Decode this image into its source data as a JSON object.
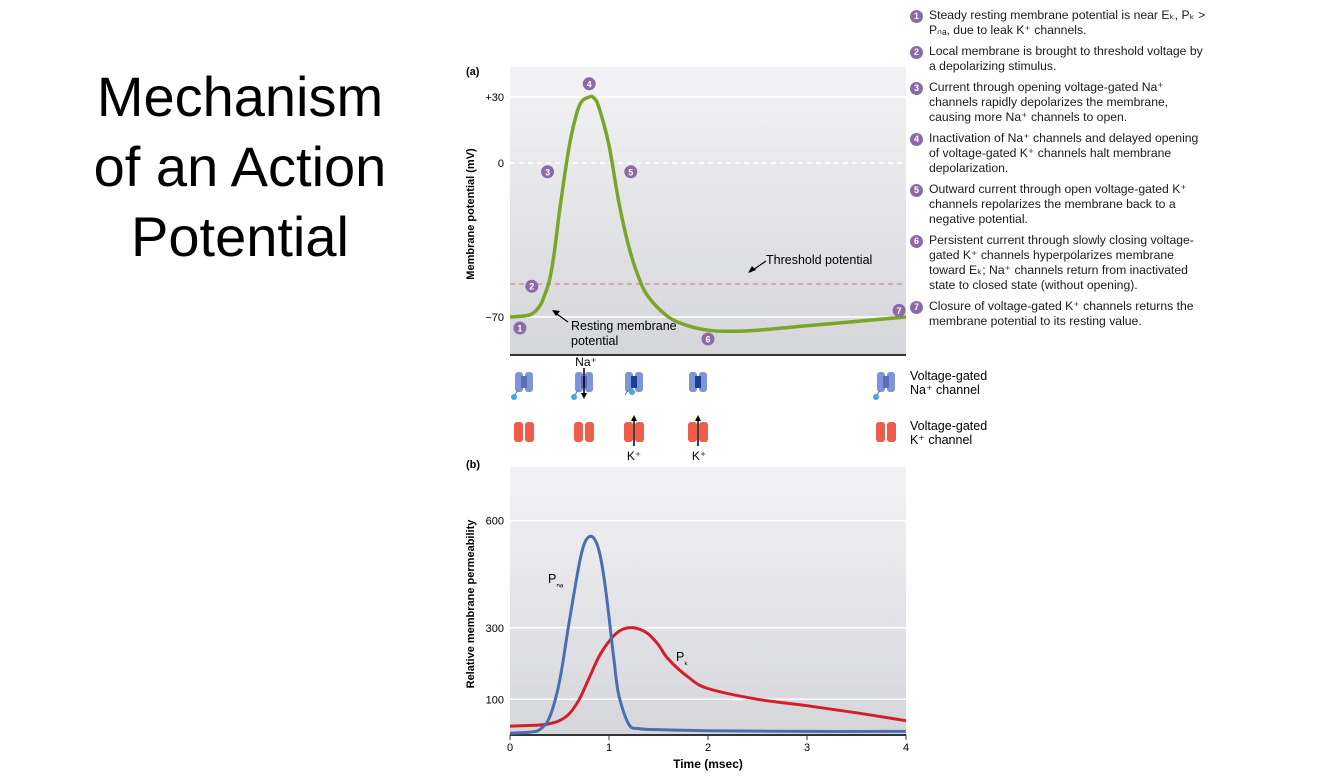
{
  "slide": {
    "title_lines": [
      "Mechanism",
      "of an Action",
      "Potential"
    ]
  },
  "notes": [
    {
      "num": "1",
      "text": "Steady resting membrane potential is near Eₖ, Pₖ > Pₙₐ, due to leak K⁺ channels."
    },
    {
      "num": "2",
      "text": "Local membrane is brought to threshold voltage by a depolarizing stimulus."
    },
    {
      "num": "3",
      "text": "Current through opening voltage-gated Na⁺ channels rapidly depolarizes the membrane, causing more Na⁺ channels to open."
    },
    {
      "num": "4",
      "text": "Inactivation of Na⁺ channels and delayed opening of voltage-gated K⁺ channels halt membrane depolarization."
    },
    {
      "num": "5",
      "text": "Outward current through open voltage-gated K⁺ channels repolarizes the membrane back to a negative potential."
    },
    {
      "num": "6",
      "text": "Persistent current through slowly closing voltage-gated K⁺ channels hyperpolarizes membrane toward Eₖ; Na⁺ channels return from inactivated state to closed state (without opening)."
    },
    {
      "num": "7",
      "text": "Closure of voltage-gated K⁺ channels returns the membrane potential to its resting value."
    }
  ],
  "channels": {
    "na_label_top": "Na⁺",
    "na_legend_1": "Voltage-gated",
    "na_legend_2": "Na⁺ channel",
    "k_legend_1": "Voltage-gated",
    "k_legend_2": "K⁺ channel",
    "k_flux_label": "K⁺",
    "na_color": "#7f95d6",
    "k_color": "#ef5d4a"
  },
  "colors": {
    "voltage_trace": "#7ba528",
    "pna_trace": "#4a6fb0",
    "pk_trace": "#d0202a",
    "threshold_line": "#d9707a",
    "marker": "#8b6aa8"
  },
  "chart_data": [
    {
      "type": "line",
      "panel_label": "(a)",
      "title": "",
      "xlabel": "",
      "ylabel": "Membrane potential (mV)",
      "ylim": [
        -90,
        37
      ],
      "yticks": [
        30,
        0,
        -70
      ],
      "ytick_labels": [
        "+30",
        "0",
        "−70"
      ],
      "xlim": [
        0,
        4
      ],
      "grid": true,
      "series": [
        {
          "x": [
            0,
            0.2,
            0.3,
            0.35,
            0.4,
            0.45,
            0.5,
            0.6,
            0.7,
            0.8,
            0.85,
            0.9,
            1.0,
            1.1,
            1.2,
            1.3,
            1.4,
            1.6,
            1.8,
            2.0,
            2.2,
            2.5,
            3.0,
            3.5,
            4.0
          ],
          "y": [
            -70,
            -69,
            -65,
            -60,
            -53,
            -40,
            -22,
            8,
            26,
            30,
            29.5,
            25,
            8,
            -18,
            -38,
            -52,
            -61,
            -70,
            -74,
            -76,
            -76.5,
            -76,
            -74,
            -72,
            -70
          ]
        }
      ],
      "reference_lines": [
        {
          "label": "Threshold potential",
          "y": -55
        }
      ],
      "annotations": [
        {
          "text": "Resting membrane potential",
          "x": 0.6,
          "y": -78
        },
        {
          "text": "Threshold potential",
          "x": 2.6,
          "y": -47
        }
      ],
      "markers": [
        {
          "label": "1",
          "x": 0.1,
          "y": -75
        },
        {
          "label": "2",
          "x": 0.22,
          "y": -56
        },
        {
          "label": "3",
          "x": 0.38,
          "y": -4
        },
        {
          "label": "4",
          "x": 0.8,
          "y": 36
        },
        {
          "label": "5",
          "x": 1.22,
          "y": -4
        },
        {
          "label": "6",
          "x": 2.0,
          "y": -80
        },
        {
          "label": "7",
          "x": 3.93,
          "y": -67
        }
      ]
    },
    {
      "type": "line",
      "panel_label": "(b)",
      "title": "",
      "xlabel": "Time (msec)",
      "ylabel": "Relative membrane permeability",
      "ylim": [
        0,
        750
      ],
      "xlim": [
        0,
        4
      ],
      "xticks": [
        0,
        1,
        2,
        3,
        4
      ],
      "yticks": [
        100,
        300,
        600
      ],
      "grid": true,
      "series": [
        {
          "name": "Pₙₐ",
          "x": [
            0,
            0.2,
            0.3,
            0.4,
            0.5,
            0.6,
            0.7,
            0.75,
            0.8,
            0.85,
            0.9,
            0.95,
            1.0,
            1.05,
            1.1,
            1.2,
            1.3,
            1.5,
            2.0,
            3.0,
            4.0
          ],
          "y": [
            5,
            8,
            15,
            50,
            150,
            320,
            480,
            535,
            555,
            550,
            515,
            440,
            330,
            210,
            110,
            30,
            18,
            15,
            12,
            10,
            10
          ]
        },
        {
          "name": "Pₖ",
          "x": [
            0,
            0.3,
            0.4,
            0.5,
            0.6,
            0.7,
            0.8,
            0.9,
            1.0,
            1.1,
            1.2,
            1.3,
            1.4,
            1.5,
            1.6,
            1.8,
            2.0,
            2.5,
            3.0,
            3.5,
            4.0
          ],
          "y": [
            25,
            28,
            32,
            40,
            60,
            100,
            160,
            220,
            262,
            290,
            300,
            297,
            282,
            252,
            212,
            162,
            130,
            100,
            82,
            62,
            40
          ]
        }
      ]
    }
  ]
}
